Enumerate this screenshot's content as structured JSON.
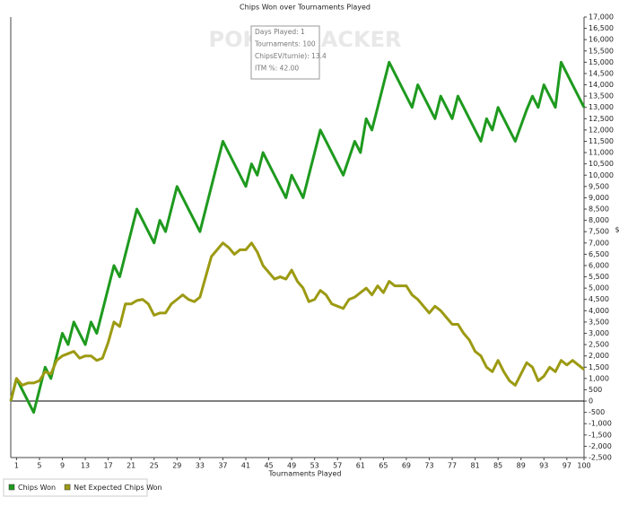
{
  "chart_data": {
    "type": "line",
    "title": "Chips Won over Tournaments Played",
    "x_label": "Tournaments Played",
    "y_label": "$",
    "watermark": "POKERTRACKER",
    "tooltip": [
      "Days Played: 1",
      "Tournaments: 100",
      "ChipsEV/turnie): 13.4",
      "ITM %: 42.00"
    ],
    "x": [
      0,
      1,
      2,
      3,
      4,
      5,
      6,
      7,
      8,
      9,
      10,
      11,
      12,
      13,
      14,
      15,
      16,
      17,
      18,
      19,
      20,
      21,
      22,
      23,
      24,
      25,
      26,
      27,
      28,
      29,
      30,
      31,
      32,
      33,
      34,
      35,
      36,
      37,
      38,
      39,
      40,
      41,
      42,
      43,
      44,
      45,
      46,
      47,
      48,
      49,
      50,
      51,
      52,
      53,
      54,
      55,
      56,
      57,
      58,
      59,
      60,
      61,
      62,
      63,
      64,
      65,
      66,
      67,
      68,
      69,
      70,
      71,
      72,
      73,
      74,
      75,
      76,
      77,
      78,
      79,
      80,
      81,
      82,
      83,
      84,
      85,
      86,
      87,
      88,
      89,
      90,
      91,
      92,
      93,
      94,
      95,
      96,
      97,
      98,
      99,
      100
    ],
    "series": [
      {
        "name": "Chips Won",
        "color": "#1e9a1e",
        "values": [
          0,
          1000,
          500,
          0,
          -500,
          500,
          1500,
          1000,
          2000,
          3000,
          2500,
          3500,
          3000,
          2500,
          3500,
          3000,
          4000,
          5000,
          6000,
          5500,
          6500,
          7500,
          8500,
          8000,
          7500,
          7000,
          8000,
          7500,
          8500,
          9500,
          9000,
          8500,
          8000,
          7500,
          8500,
          9500,
          10500,
          11500,
          11000,
          10500,
          10000,
          9500,
          10500,
          10000,
          11000,
          10500,
          10000,
          9500,
          9000,
          10000,
          9500,
          9000,
          10000,
          11000,
          12000,
          11500,
          11000,
          10500,
          10000,
          10750,
          11500,
          11000,
          12500,
          12000,
          13000,
          14000,
          15000,
          14500,
          14000,
          13500,
          13000,
          14000,
          13500,
          13000,
          12500,
          13500,
          13000,
          12500,
          13500,
          13000,
          12500,
          12000,
          11500,
          12500,
          12000,
          13000,
          12500,
          12000,
          11500,
          12200,
          12900,
          13500,
          13000,
          14000,
          13500,
          13000,
          15000,
          14500,
          14000,
          13500,
          13000
        ]
      },
      {
        "name": "Net Expected Chips Won",
        "color": "#9c9a12",
        "values": [
          0,
          1000,
          700,
          800,
          800,
          900,
          1300,
          1200,
          1800,
          2000,
          2100,
          2200,
          1900,
          2000,
          2000,
          1800,
          1900,
          2600,
          3500,
          3300,
          4300,
          4300,
          4450,
          4500,
          4300,
          3800,
          3900,
          3900,
          4300,
          4500,
          4700,
          4500,
          4400,
          4600,
          5500,
          6400,
          6700,
          7000,
          6800,
          6500,
          6700,
          6700,
          7000,
          6600,
          6000,
          5700,
          5400,
          5500,
          5400,
          5800,
          5300,
          5000,
          4400,
          4500,
          4900,
          4700,
          4300,
          4200,
          4100,
          4500,
          4600,
          4800,
          5000,
          4700,
          5100,
          4800,
          5300,
          5100,
          5100,
          5100,
          4700,
          4500,
          4200,
          3900,
          4200,
          4000,
          3700,
          3400,
          3400,
          3000,
          2700,
          2200,
          2000,
          1500,
          1300,
          1800,
          1300,
          900,
          700,
          1200,
          1700,
          1500,
          900,
          1100,
          1500,
          1300,
          1800,
          1600,
          1800,
          1600,
          1400
        ]
      }
    ],
    "xlim": [
      0,
      100
    ],
    "xticks": [
      1,
      5,
      9,
      13,
      17,
      21,
      25,
      29,
      33,
      37,
      41,
      45,
      49,
      53,
      57,
      61,
      65,
      69,
      73,
      77,
      81,
      85,
      89,
      93,
      97,
      100
    ],
    "ylim": [
      -2500,
      17000
    ],
    "yticks": [
      {
        "value": -2500,
        "label": "-2,500"
      },
      {
        "value": -2000,
        "label": "-2,000"
      },
      {
        "value": -1500,
        "label": "-1,500"
      },
      {
        "value": -1000,
        "label": "-1,000"
      },
      -500,
      0,
      500,
      {
        "value": 1000,
        "label": "1,000"
      },
      {
        "value": 1500,
        "label": "1,500"
      },
      {
        "value": 2000,
        "label": "2,000"
      },
      {
        "value": 2500,
        "label": "2,500"
      },
      {
        "value": 3000,
        "label": "3,000"
      },
      {
        "value": 3500,
        "label": "3,500"
      },
      {
        "value": 4000,
        "label": "4,000"
      },
      {
        "value": 4500,
        "label": "4,500"
      },
      {
        "value": 5000,
        "label": "5,000"
      },
      {
        "value": 5500,
        "label": "5,500"
      },
      {
        "value": 6000,
        "label": "6,000"
      },
      {
        "value": 6500,
        "label": "6,500"
      },
      {
        "value": 7000,
        "label": "7,000"
      },
      {
        "value": 7500,
        "label": "7,500"
      },
      {
        "value": 8000,
        "label": "8,000"
      },
      {
        "value": 8500,
        "label": "8,500"
      },
      {
        "value": 9000,
        "label": "9,000"
      },
      {
        "value": 9500,
        "label": "9,500"
      },
      {
        "value": 10000,
        "label": "10,000"
      },
      {
        "value": 10500,
        "label": "10,500"
      },
      {
        "value": 11000,
        "label": "11,000"
      },
      {
        "value": 11500,
        "label": "11,500"
      },
      {
        "value": 12000,
        "label": "12,000"
      },
      {
        "value": 12500,
        "label": "12,500"
      },
      {
        "value": 13000,
        "label": "13,000"
      },
      {
        "value": 13500,
        "label": "13,500"
      },
      {
        "value": 14000,
        "label": "14,000"
      },
      {
        "value": 14500,
        "label": "14,500"
      },
      {
        "value": 15000,
        "label": "15,000"
      },
      {
        "value": 15500,
        "label": "15,500"
      },
      {
        "value": 16000,
        "label": "16,000"
      },
      {
        "value": 16500,
        "label": "16,500"
      },
      {
        "value": 17000,
        "label": "17,000"
      }
    ],
    "grid": false,
    "zero_line": true
  }
}
